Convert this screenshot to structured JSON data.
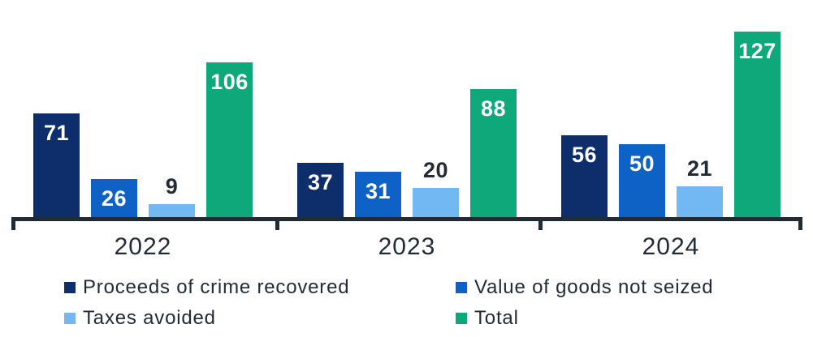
{
  "chart_data": {
    "type": "bar",
    "title": "",
    "xlabel": "",
    "ylabel": "",
    "categories": [
      "2022",
      "2023",
      "2024"
    ],
    "series": [
      {
        "name": "Proceeds of crime recovered",
        "color": "#0D2D6B",
        "label_position": "inside",
        "label_color": "#FFFFFF",
        "values": [
          71,
          37,
          56
        ]
      },
      {
        "name": "Value of goods not seized",
        "color": "#0F62C5",
        "label_position": "inside",
        "label_color": "#FFFFFF",
        "values": [
          26,
          31,
          50
        ]
      },
      {
        "name": "Taxes avoided",
        "color": "#72B8F2",
        "label_position": "above",
        "label_color": "#212B36",
        "values": [
          9,
          20,
          21
        ]
      },
      {
        "name": "Total",
        "color": "#0FA87B",
        "label_position": "inside",
        "label_color": "#FFFFFF",
        "values": [
          106,
          88,
          127
        ]
      }
    ],
    "ylim": [
      0,
      130
    ],
    "grid": false,
    "legend_position": "bottom",
    "legend_columns": [
      [
        "Proceeds of crime recovered",
        "Taxes avoided"
      ],
      [
        "Value of goods not seized",
        "Total"
      ]
    ]
  },
  "colors": {
    "axis": "#212B36",
    "category_text": "#212B36",
    "legend_text": "#212B36",
    "background": "#FFFFFF"
  }
}
